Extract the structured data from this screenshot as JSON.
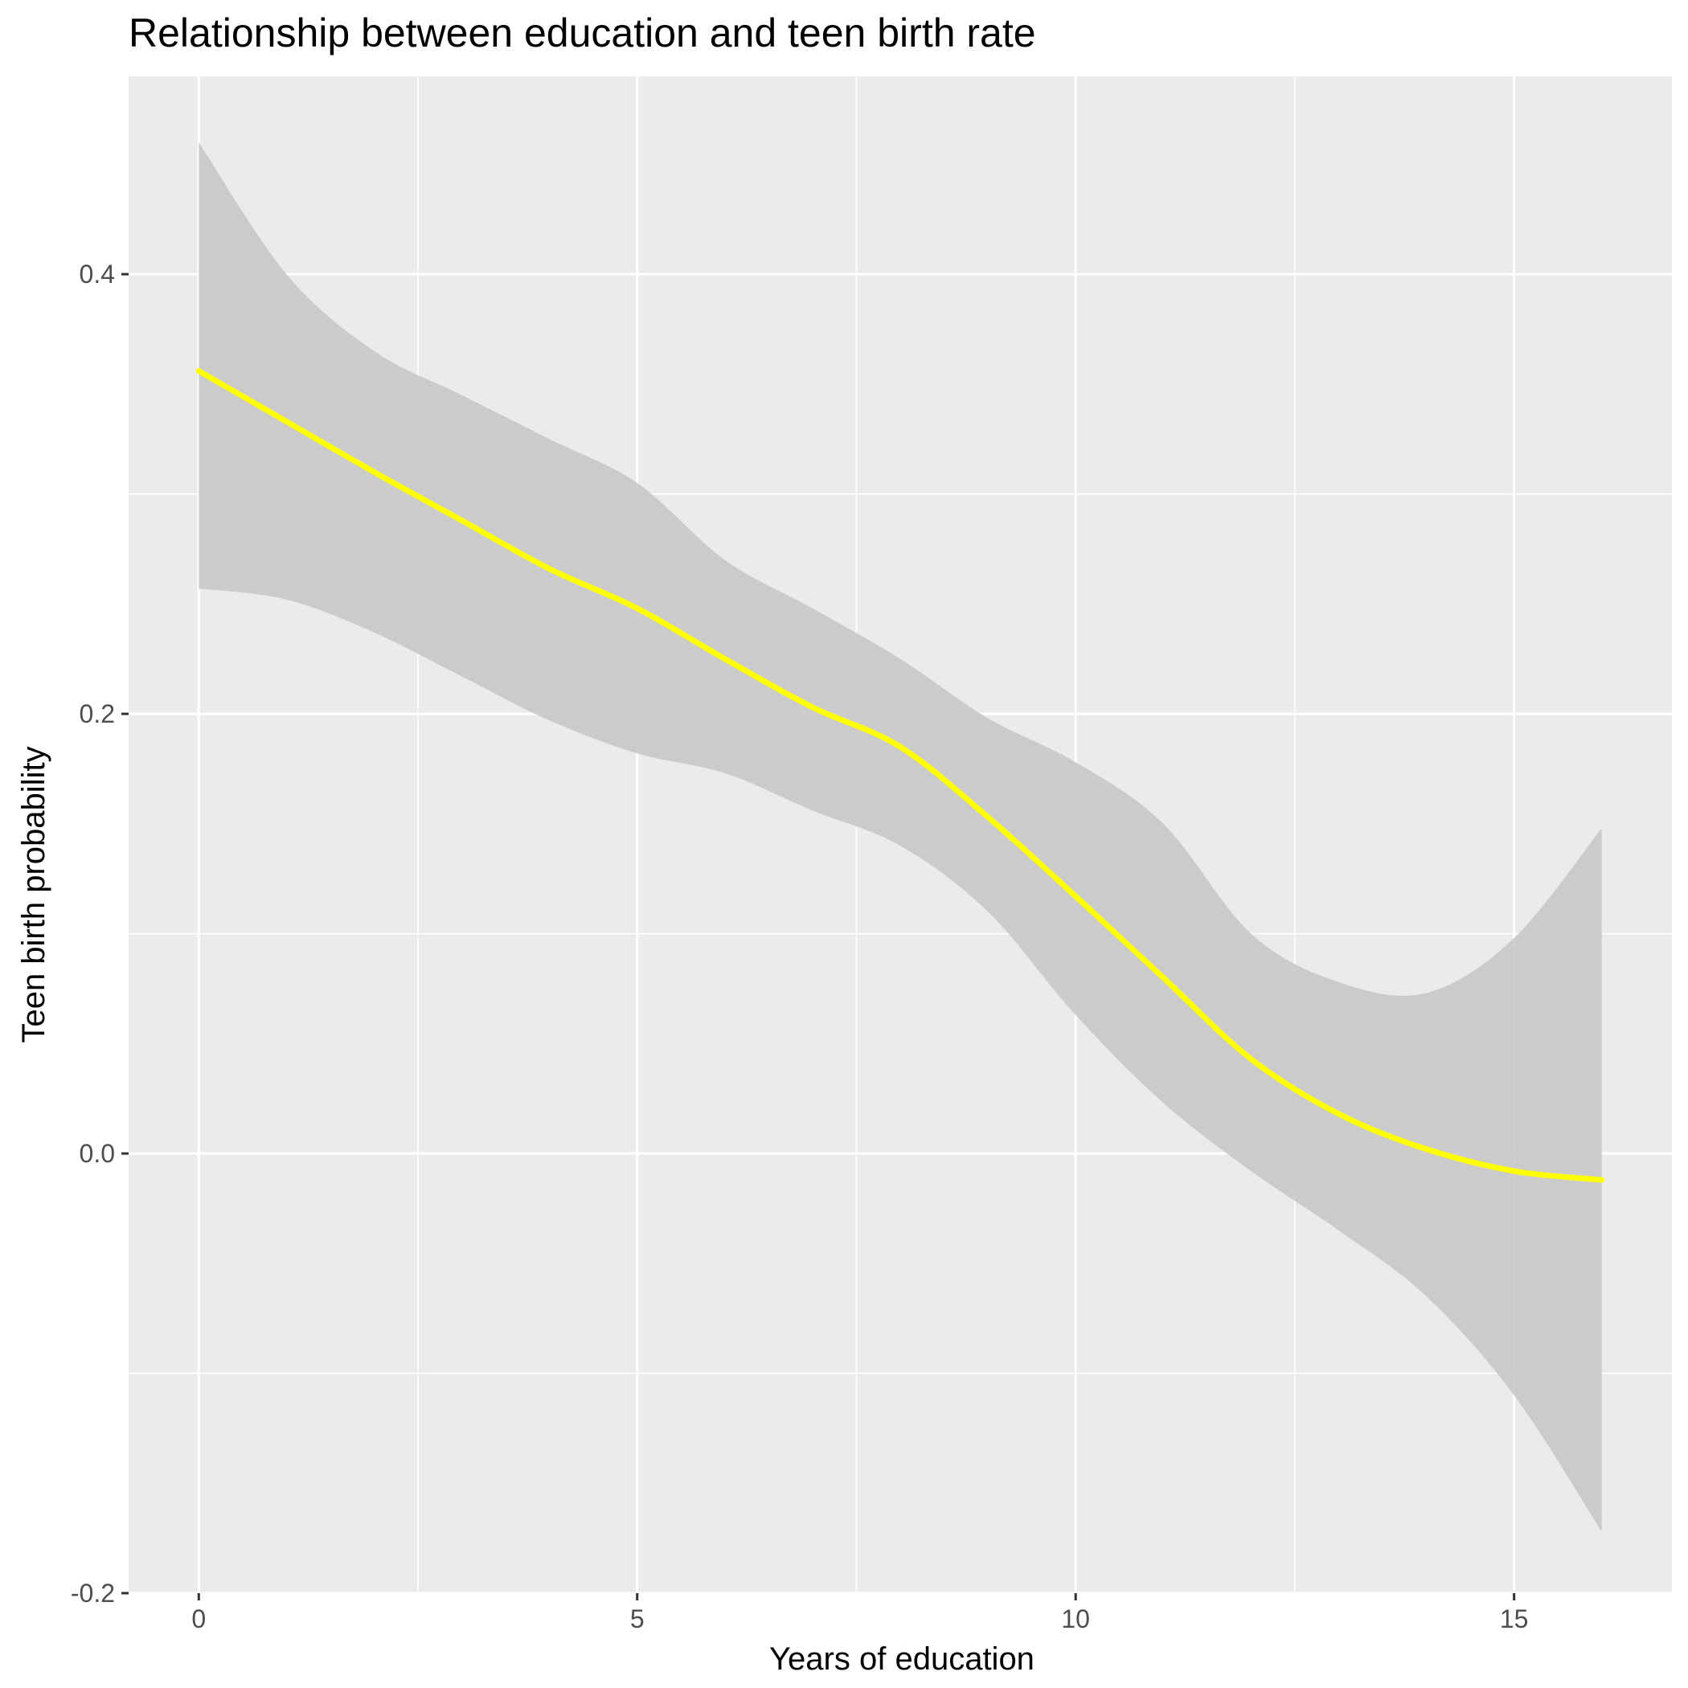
{
  "chart_data": {
    "type": "line",
    "title": "Relationship between education and teen birth rate",
    "xlabel": "Years of education",
    "ylabel": "Teen birth probability",
    "xlim": [
      -0.8,
      16.8
    ],
    "ylim": [
      -0.2,
      0.49
    ],
    "x_ticks": [
      0,
      5,
      10,
      15
    ],
    "x_tick_labels": [
      "0",
      "5",
      "10",
      "15"
    ],
    "y_ticks": [
      -0.2,
      0.0,
      0.2,
      0.4
    ],
    "y_tick_labels": [
      "-0.2",
      "0.0",
      "0.2",
      "0.4"
    ],
    "x_minor_grid": [
      2.5,
      7.5,
      12.5
    ],
    "y_minor_grid": [
      -0.1,
      0.1,
      0.3
    ],
    "grid": true,
    "legend": "none",
    "colors": {
      "panel_background": "#EBEBEB",
      "grid": "#FFFFFF",
      "line": "#FFFF00",
      "ribbon": "#C8C8C8"
    },
    "series": [
      {
        "x": [
          0,
          1,
          2,
          3,
          4,
          5,
          6,
          7,
          8,
          9,
          10,
          11,
          12,
          13,
          14,
          15,
          16
        ],
        "y": [
          0.356,
          0.333,
          0.31,
          0.288,
          0.266,
          0.248,
          0.225,
          0.203,
          0.185,
          0.153,
          0.117,
          0.08,
          0.043,
          0.018,
          0.002,
          -0.008,
          -0.012
        ],
        "lower": [
          0.257,
          0.252,
          0.237,
          0.217,
          0.197,
          0.182,
          0.173,
          0.156,
          0.14,
          0.11,
          0.063,
          0.023,
          -0.008,
          -0.035,
          -0.065,
          -0.11,
          -0.172
        ],
        "upper": [
          0.46,
          0.4,
          0.365,
          0.345,
          0.325,
          0.305,
          0.27,
          0.248,
          0.225,
          0.198,
          0.178,
          0.15,
          0.1,
          0.078,
          0.073,
          0.098,
          0.148
        ]
      }
    ]
  }
}
